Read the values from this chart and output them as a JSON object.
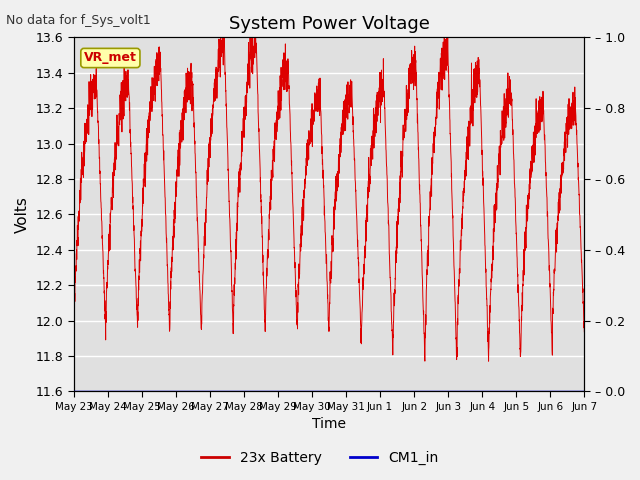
{
  "title": "System Power Voltage",
  "top_left_text": "No data for f_Sys_volt1",
  "xlabel": "Time",
  "ylabel": "Volts",
  "ylim_left": [
    11.6,
    13.6
  ],
  "ylim_right": [
    0.0,
    1.0
  ],
  "yticks_left": [
    11.6,
    11.8,
    12.0,
    12.2,
    12.4,
    12.6,
    12.8,
    13.0,
    13.2,
    13.4,
    13.6
  ],
  "yticks_right": [
    0.0,
    0.2,
    0.4,
    0.6,
    0.8,
    1.0
  ],
  "xtick_labels": [
    "May 23",
    "May 24",
    "May 25",
    "May 26",
    "May 27",
    "May 28",
    "May 29",
    "May 30",
    "May 31",
    "Jun 1",
    "Jun 2",
    "Jun 3",
    "Jun 4",
    "Jun 5",
    "Jun 6",
    "Jun 7"
  ],
  "legend_entries": [
    "23x Battery",
    "CM1_in"
  ],
  "legend_colors": [
    "#cc0000",
    "#0000cc"
  ],
  "line_color_battery": "#dd0000",
  "line_color_cm1": "#0000cc",
  "axes_bg_color": "#e0e0e0",
  "grid_color": "#ffffff",
  "annotation_text": "VR_met",
  "annotation_bg": "#ffffaa",
  "annotation_border": "#999900",
  "n_days": 16
}
